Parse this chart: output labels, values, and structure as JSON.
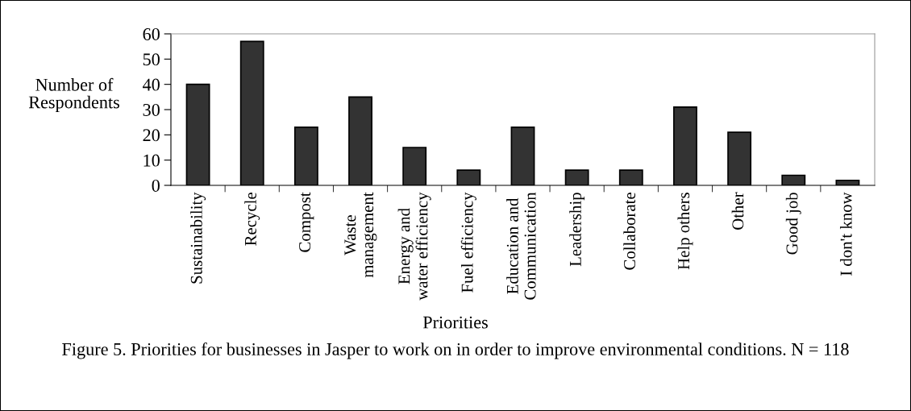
{
  "chart_data": {
    "type": "bar",
    "categories": [
      "Sustainability",
      "Recycle",
      "Compost",
      "Waste\nmanagement",
      "Energy and\nwater efficiency",
      "Fuel efficiency",
      "Education and\nCommunication",
      "Leadership",
      "Collaborate",
      "Help others",
      "Other",
      "Good job",
      "I don't know"
    ],
    "values": [
      40,
      57,
      23,
      35,
      15,
      6,
      23,
      6,
      6,
      31,
      21,
      4,
      2
    ],
    "color": "#333333",
    "ylim": [
      0,
      60
    ],
    "yticks": [
      0,
      10,
      20,
      30,
      40,
      50,
      60
    ],
    "ylabel": "Number of\nRespondents",
    "xlabel": "Priorities",
    "annotations": [
      "Figure 5. Priorities for businesses in Jasper to work on in order to improve environmental conditions. N = 118"
    ],
    "grid": false,
    "legend": false
  }
}
